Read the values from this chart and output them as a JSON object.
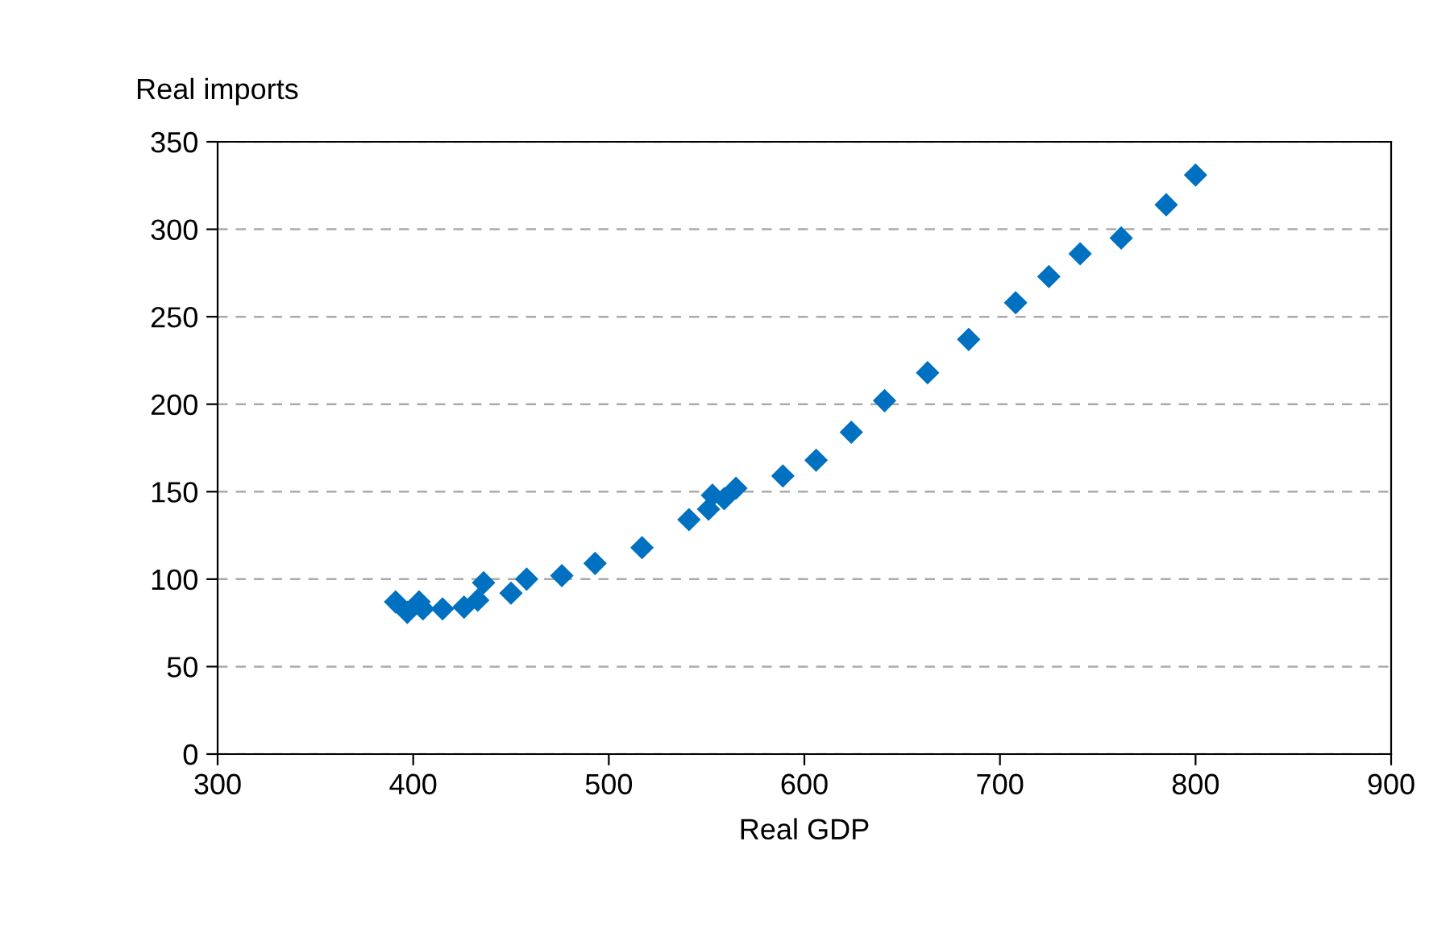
{
  "chart_data": {
    "type": "scatter",
    "xlabel": "Real GDP",
    "ylabel": "Real imports",
    "x": [
      391,
      397,
      403,
      405,
      415,
      426,
      433,
      436,
      450,
      458,
      476,
      493,
      517,
      541,
      551,
      553,
      559,
      565,
      589,
      606,
      624,
      641,
      663,
      684,
      708,
      725,
      741,
      762,
      785,
      800
    ],
    "series": [
      {
        "color": "#0070c0",
        "values": [
          87,
          81,
          87,
          83,
          83,
          84,
          88,
          98,
          92,
          100,
          102,
          109,
          118,
          134,
          140,
          148,
          146,
          152,
          159,
          168,
          184,
          202,
          218,
          237,
          258,
          273,
          286,
          295,
          314,
          331
        ]
      }
    ],
    "xlim": [
      300,
      900
    ],
    "xticks": [
      300,
      400,
      500,
      600,
      700,
      800,
      900
    ],
    "ylim": [
      0,
      350
    ],
    "yticks": [
      0,
      50,
      100,
      150,
      200,
      250,
      300,
      350
    ],
    "grid": "y",
    "marker": "diamond",
    "legend": false
  }
}
